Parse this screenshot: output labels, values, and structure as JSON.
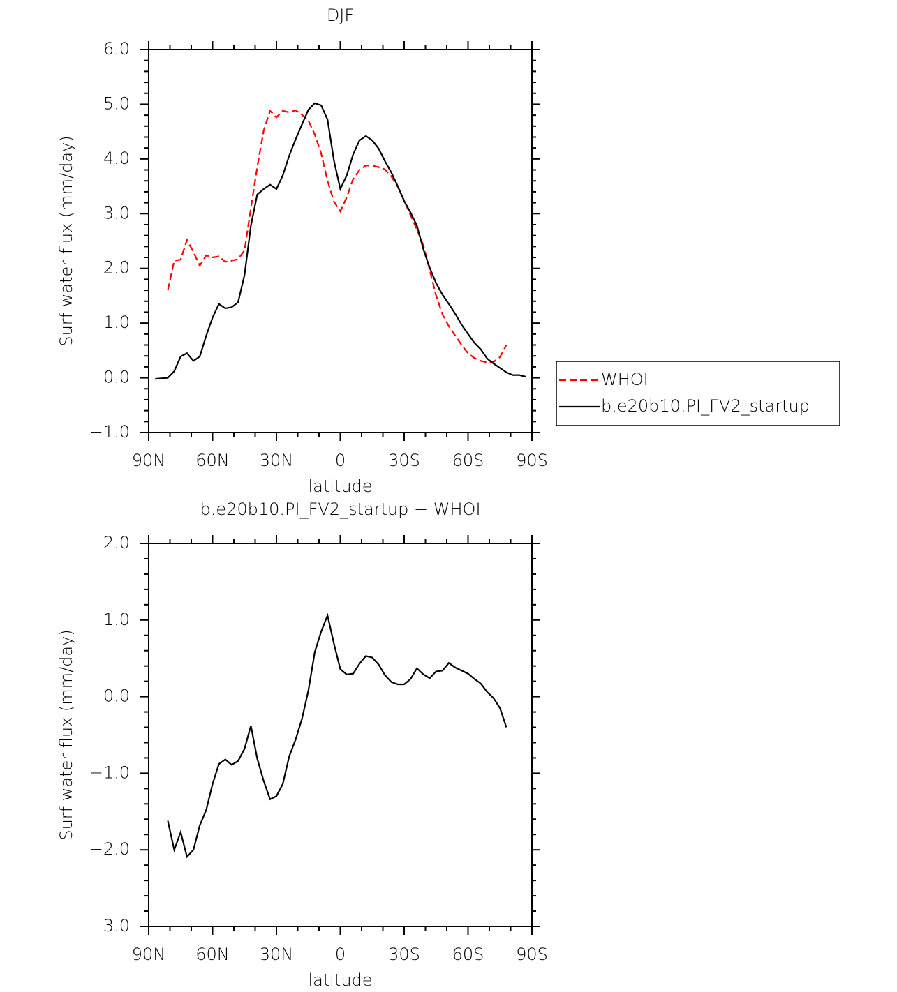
{
  "chart_data": [
    {
      "type": "line",
      "title": "DJF",
      "xlabel": "latitude",
      "ylabel": "Surf water flux (mm/day)",
      "x": [
        87,
        84,
        81,
        78,
        75,
        72,
        69,
        66,
        63,
        60,
        57,
        54,
        51,
        48,
        45,
        42,
        39,
        36,
        33,
        30,
        27,
        24,
        21,
        18,
        15,
        12,
        9,
        6,
        3,
        0,
        -3,
        -6,
        -9,
        -12,
        -15,
        -18,
        -21,
        -24,
        -27,
        -30,
        -33,
        -36,
        -39,
        -42,
        -45,
        -48,
        -51,
        -54,
        -57,
        -60,
        -63,
        -66,
        -69,
        -72,
        -75,
        -78,
        -81,
        -84,
        -87
      ],
      "xlim": [
        90,
        -90
      ],
      "xticks": [
        {
          "value": 90,
          "label": "90N"
        },
        {
          "value": 60,
          "label": "60N"
        },
        {
          "value": 30,
          "label": "30N"
        },
        0,
        {
          "value": -30,
          "label": "30S"
        },
        {
          "value": -60,
          "label": "60S"
        },
        {
          "value": -90,
          "label": "90S"
        }
      ],
      "ylim": [
        -1,
        6
      ],
      "yticks": [
        {
          "value": -1,
          "label": "−1.0"
        },
        {
          "value": 0,
          "label": "0.0"
        },
        {
          "value": 1,
          "label": "1.0"
        },
        {
          "value": 2,
          "label": "2.0"
        },
        {
          "value": 3,
          "label": "3.0"
        },
        {
          "value": 4,
          "label": "4.0"
        },
        {
          "value": 5,
          "label": "5.0"
        },
        {
          "value": 6,
          "label": "6.0"
        }
      ],
      "legend": "outside-right",
      "series": [
        {
          "name": "WHOI",
          "color": "#ff0000",
          "linestyle": "dashed",
          "values": [
            null,
            null,
            1.6,
            2.14,
            2.16,
            2.52,
            2.3,
            2.05,
            2.24,
            2.2,
            2.22,
            2.12,
            2.14,
            2.17,
            2.33,
            3.1,
            3.85,
            4.52,
            4.88,
            4.76,
            4.88,
            4.85,
            4.89,
            4.81,
            4.7,
            4.45,
            4.1,
            3.6,
            3.22,
            3.04,
            3.3,
            3.63,
            3.8,
            3.88,
            3.88,
            3.85,
            3.81,
            3.68,
            3.49,
            3.24,
            2.97,
            2.71,
            2.42,
            1.97,
            1.5,
            1.16,
            0.94,
            0.77,
            0.6,
            0.45,
            0.36,
            0.31,
            0.28,
            0.29,
            0.38,
            0.6,
            null,
            null,
            null
          ]
        },
        {
          "name": "b.e20b10.PI_FV2_startup",
          "color": "#000000",
          "linestyle": "solid",
          "values": [
            -0.02,
            -0.01,
            0.0,
            0.12,
            0.39,
            0.45,
            0.31,
            0.39,
            0.77,
            1.1,
            1.35,
            1.27,
            1.29,
            1.38,
            1.88,
            2.78,
            3.35,
            3.45,
            3.53,
            3.45,
            3.7,
            4.06,
            4.36,
            4.63,
            4.9,
            5.02,
            4.98,
            4.72,
            3.97,
            3.45,
            3.7,
            4.08,
            4.34,
            4.42,
            4.34,
            4.19,
            3.96,
            3.75,
            3.5,
            3.23,
            3.02,
            2.78,
            2.35,
            2.01,
            1.73,
            1.52,
            1.35,
            1.17,
            0.97,
            0.8,
            0.64,
            0.52,
            0.35,
            0.26,
            0.18,
            0.1,
            0.05,
            0.05,
            0.02
          ]
        }
      ]
    },
    {
      "type": "line",
      "title": "b.e20b10.PI_FV2_startup − WHOI",
      "xlabel": "latitude",
      "ylabel": "Surf water flux (mm/day)",
      "x": [
        87,
        84,
        81,
        78,
        75,
        72,
        69,
        66,
        63,
        60,
        57,
        54,
        51,
        48,
        45,
        42,
        39,
        36,
        33,
        30,
        27,
        24,
        21,
        18,
        15,
        12,
        9,
        6,
        3,
        0,
        -3,
        -6,
        -9,
        -12,
        -15,
        -18,
        -21,
        -24,
        -27,
        -30,
        -33,
        -36,
        -39,
        -42,
        -45,
        -48,
        -51,
        -54,
        -57,
        -60,
        -63,
        -66,
        -69,
        -72,
        -75,
        -78,
        -81,
        -84,
        -87
      ],
      "xlim": [
        90,
        -90
      ],
      "xticks": [
        {
          "value": 90,
          "label": "90N"
        },
        {
          "value": 60,
          "label": "60N"
        },
        {
          "value": 30,
          "label": "30N"
        },
        0,
        {
          "value": -30,
          "label": "30S"
        },
        {
          "value": -60,
          "label": "60S"
        },
        {
          "value": -90,
          "label": "90S"
        }
      ],
      "ylim": [
        -3,
        2
      ],
      "yticks": [
        {
          "value": -3,
          "label": "−3.0"
        },
        {
          "value": -2,
          "label": "−2.0"
        },
        {
          "value": -1,
          "label": "−1.0"
        },
        {
          "value": 0,
          "label": "0.0"
        },
        {
          "value": 1,
          "label": "1.0"
        },
        {
          "value": 2,
          "label": "2.0"
        }
      ],
      "series": [
        {
          "color": "#000000",
          "linestyle": "solid",
          "values": [
            null,
            null,
            -1.62,
            -2.0,
            -1.77,
            -2.09,
            -2.0,
            -1.68,
            -1.48,
            -1.14,
            -0.88,
            -0.82,
            -0.89,
            -0.84,
            -0.68,
            -0.38,
            -0.81,
            -1.1,
            -1.34,
            -1.3,
            -1.14,
            -0.78,
            -0.56,
            -0.29,
            0.08,
            0.58,
            0.85,
            1.06,
            0.69,
            0.36,
            0.29,
            0.3,
            0.43,
            0.53,
            0.51,
            0.42,
            0.28,
            0.19,
            0.16,
            0.16,
            0.23,
            0.37,
            0.29,
            0.24,
            0.33,
            0.34,
            0.44,
            0.38,
            0.34,
            0.3,
            0.23,
            0.17,
            0.06,
            -0.02,
            -0.15,
            -0.4,
            null,
            null,
            null
          ]
        }
      ]
    }
  ]
}
